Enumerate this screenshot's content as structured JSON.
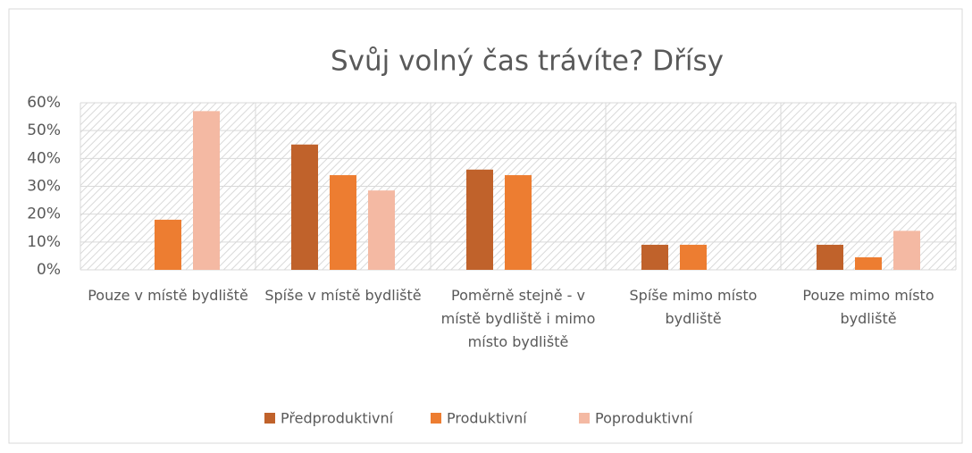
{
  "chart_data": {
    "type": "bar",
    "title": "Svůj volný čas trávíte? Dřísy",
    "categories": [
      "Pouze v místě bydliště",
      "Spíše v místě bydliště",
      "Poměrně stejně - v místě bydliště i mimo místo bydliště",
      "Spíše mimo místo bydliště",
      "Pouze mimo místo bydliště"
    ],
    "series": [
      {
        "name": "Předproduktivní",
        "color": "#c0622b",
        "values": [
          0,
          45,
          36,
          9,
          9
        ]
      },
      {
        "name": "Produktivní",
        "color": "#ed7d31",
        "values": [
          18,
          34,
          34,
          9,
          4.5
        ]
      },
      {
        "name": "Poproduktivní",
        "color": "#f4b9a3",
        "values": [
          57,
          28.5,
          0,
          0,
          14
        ]
      }
    ],
    "ylim": [
      0,
      60
    ],
    "yticks": [
      {
        "value": 0,
        "label": "0%"
      },
      {
        "value": 10,
        "label": "10%"
      },
      {
        "value": 20,
        "label": "20%"
      },
      {
        "value": 30,
        "label": "30%"
      },
      {
        "value": 40,
        "label": "40%"
      },
      {
        "value": 50,
        "label": "50%"
      },
      {
        "value": 60,
        "label": "60%"
      }
    ],
    "grid": true,
    "legend": "bottom"
  }
}
